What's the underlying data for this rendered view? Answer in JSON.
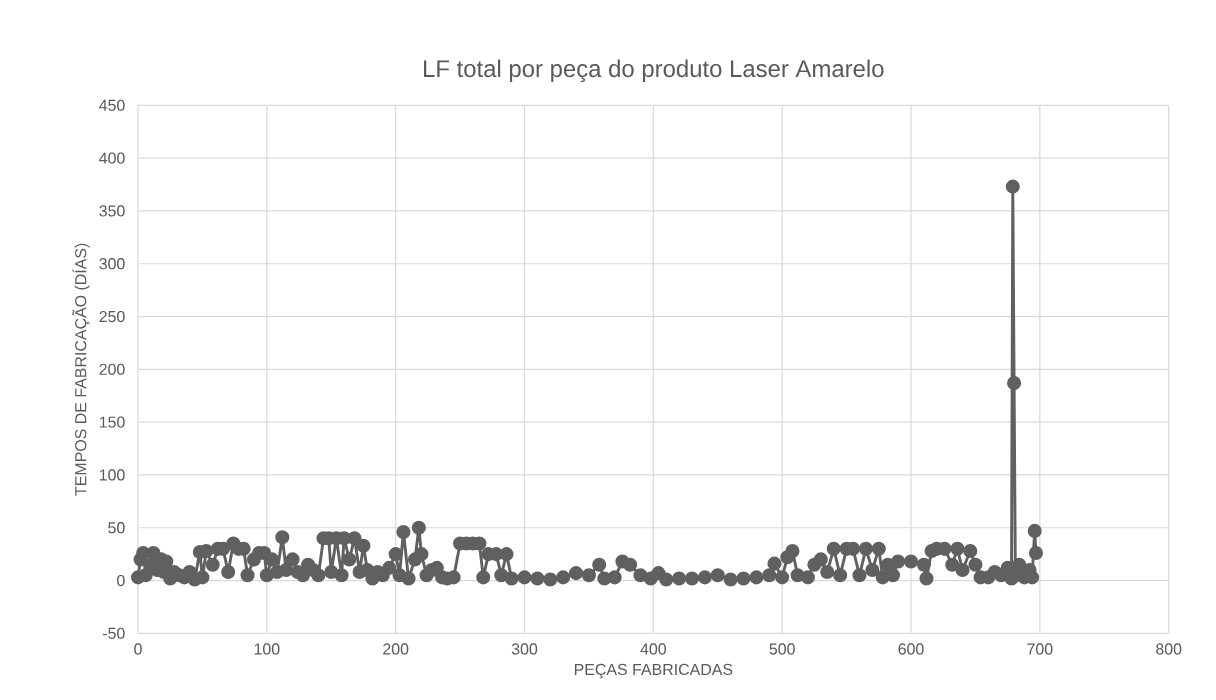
{
  "chart_data": {
    "type": "line",
    "title": "LF total por peça do produto Laser Amarelo",
    "xlabel": "PEÇAS FABRICADAS",
    "ylabel": "TEMPOS DE FABRICAÇÃO (DÍAS)",
    "x": [
      0,
      2,
      4,
      6,
      10,
      12,
      15,
      18,
      20,
      22,
      25,
      28,
      32,
      36,
      40,
      44,
      48,
      50,
      53,
      58,
      62,
      66,
      70,
      74,
      78,
      82,
      85,
      90,
      94,
      98,
      100,
      104,
      108,
      112,
      115,
      120,
      124,
      128,
      132,
      136,
      140,
      144,
      148,
      150,
      154,
      158,
      160,
      164,
      168,
      172,
      175,
      178,
      182,
      186,
      190,
      195,
      200,
      203,
      206,
      210,
      215,
      218,
      220,
      224,
      228,
      232,
      236,
      240,
      245,
      250,
      255,
      260,
      265,
      268,
      272,
      278,
      282,
      286,
      290,
      300,
      310,
      320,
      330,
      340,
      350,
      358,
      362,
      370,
      376,
      382,
      390,
      398,
      404,
      410,
      420,
      430,
      440,
      450,
      460,
      470,
      480,
      490,
      494,
      500,
      504,
      508,
      512,
      520,
      525,
      530,
      535,
      540,
      545,
      550,
      555,
      560,
      565,
      570,
      575,
      578,
      582,
      586,
      590,
      600,
      610,
      612,
      616,
      620,
      626,
      632,
      636,
      640,
      646,
      650,
      654,
      660,
      665,
      670,
      675,
      678,
      679,
      680,
      681,
      684,
      688,
      692,
      694,
      696,
      697
    ],
    "series": [
      {
        "color": "#606060",
        "values": [
          3,
          20,
          26,
          5,
          15,
          26,
          10,
          20,
          8,
          18,
          2,
          8,
          5,
          3,
          8,
          1,
          27,
          3,
          28,
          15,
          30,
          30,
          8,
          35,
          30,
          30,
          5,
          20,
          26,
          26,
          5,
          20,
          8,
          41,
          10,
          20,
          8,
          5,
          15,
          10,
          5,
          40,
          40,
          8,
          40,
          5,
          40,
          20,
          40,
          8,
          33,
          10,
          2,
          8,
          5,
          12,
          25,
          5,
          46,
          2,
          20,
          50,
          25,
          5,
          10,
          12,
          3,
          2,
          3,
          35,
          35,
          35,
          35,
          3,
          25,
          25,
          5,
          25,
          2,
          3,
          2,
          1,
          3,
          7,
          5,
          15,
          2,
          3,
          18,
          15,
          5,
          2,
          7,
          1,
          2,
          2,
          3,
          5,
          1,
          2,
          3,
          5,
          16,
          3,
          22,
          28,
          5,
          3,
          15,
          20,
          8,
          30,
          5,
          30,
          30,
          5,
          30,
          10,
          30,
          3,
          15,
          5,
          18,
          18,
          15,
          2,
          28,
          30,
          30,
          15,
          30,
          10,
          28,
          15,
          3,
          3,
          8,
          5,
          12,
          2,
          373,
          187,
          5,
          15,
          3,
          10,
          3,
          47,
          26
        ]
      }
    ],
    "xlim": [
      0,
      800
    ],
    "xticks": [
      0,
      100,
      200,
      300,
      400,
      500,
      600,
      700,
      800
    ],
    "ylim": [
      -50,
      450
    ],
    "yticks": [
      -50,
      0,
      50,
      100,
      150,
      200,
      250,
      300,
      350,
      400,
      450
    ],
    "grid": true,
    "marker": "circle",
    "line_style": "solid"
  }
}
